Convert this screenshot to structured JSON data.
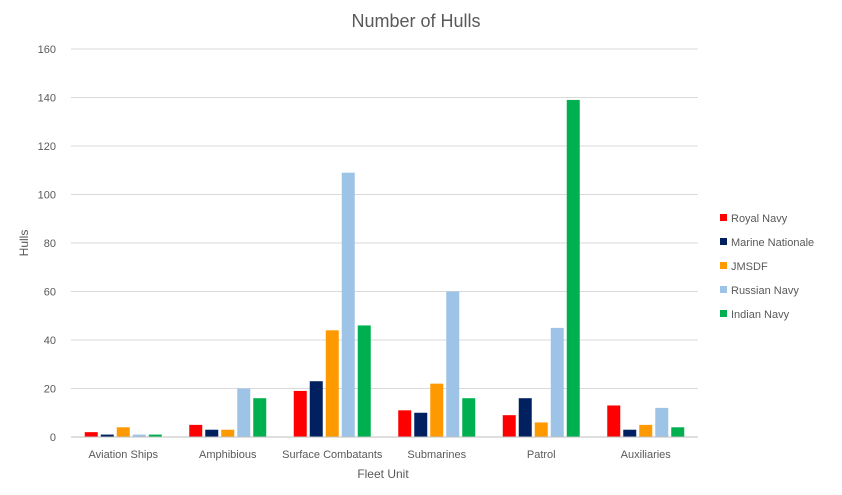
{
  "chart_data": {
    "type": "bar",
    "title": "Number of Hulls",
    "xlabel": "Fleet Unit",
    "ylabel": "Hulls",
    "ylim": [
      0,
      160
    ],
    "yticks": [
      0,
      20,
      40,
      60,
      80,
      100,
      120,
      140,
      160
    ],
    "grid": true,
    "legend_position": "right",
    "categories": [
      "Aviation Ships",
      "Amphibious",
      "Surface Combatants",
      "Submarines",
      "Patrol",
      "Auxiliaries"
    ],
    "series": [
      {
        "name": "Royal Navy",
        "color": "#ff0000",
        "values": [
          2,
          5,
          19,
          11,
          9,
          13
        ]
      },
      {
        "name": "Marine Nationale",
        "color": "#002060",
        "values": [
          1,
          3,
          23,
          10,
          16,
          3
        ]
      },
      {
        "name": "JMSDF",
        "color": "#ff9900",
        "values": [
          4,
          3,
          44,
          22,
          6,
          5
        ]
      },
      {
        "name": "Russian Navy",
        "color": "#9dc3e6",
        "values": [
          1,
          20,
          109,
          60,
          45,
          12
        ]
      },
      {
        "name": "Indian Navy",
        "color": "#00b050",
        "values": [
          1,
          16,
          46,
          16,
          139,
          4
        ]
      }
    ]
  }
}
